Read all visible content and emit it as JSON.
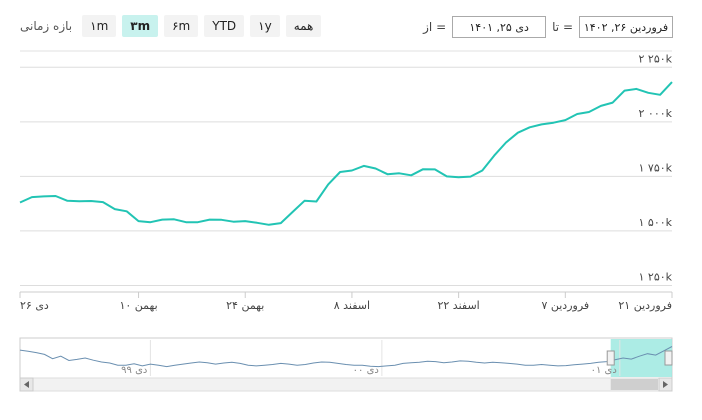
{
  "range_selector": {
    "label": "بازه زمانی",
    "buttons": [
      {
        "label": "۱m",
        "active": false
      },
      {
        "label": "۳m",
        "active": true
      },
      {
        "label": "۶m",
        "active": false
      },
      {
        "label": "YTD",
        "active": false
      },
      {
        "label": "۱y",
        "active": false
      },
      {
        "label": "همه",
        "active": false
      }
    ]
  },
  "date_range": {
    "from_label": "از =",
    "from_value": "دی ۲۵, ۱۴۰۱",
    "to_label": "تا =",
    "to_value": "فروردین ۲۶, ۱۴۰۲"
  },
  "colors": {
    "line": "#22c4b4",
    "navigator_line": "#6a8fb0",
    "navigator_mask": "#9ee9e1",
    "grid": "#dddddd"
  },
  "chart_data": {
    "type": "line",
    "y_ticks": [
      {
        "value": 1250,
        "label": "۱ ۲۵۰k"
      },
      {
        "value": 1500,
        "label": "۱ ۵۰۰k"
      },
      {
        "value": 1750,
        "label": "۱ ۷۵۰k"
      },
      {
        "value": 2000,
        "label": "۲ ۰۰۰k"
      },
      {
        "value": 2250,
        "label": "۲ ۲۵۰k"
      }
    ],
    "ylim": [
      1220,
      2320
    ],
    "x_ticks": [
      "دی ۲۶",
      "بهمن ۱۰",
      "بهمن ۲۴",
      "اسفند ۸",
      "اسفند ۲۲",
      "فروردین ۷",
      "فروردین ۲۱"
    ],
    "series": [
      {
        "values": [
          1630,
          1655,
          1658,
          1660,
          1638,
          1636,
          1637,
          1632,
          1600,
          1590,
          1545,
          1540,
          1552,
          1553,
          1540,
          1540,
          1552,
          1551,
          1542,
          1545,
          1537,
          1528,
          1536,
          1587,
          1638,
          1635,
          1713,
          1770,
          1777,
          1798,
          1786,
          1760,
          1764,
          1755,
          1783,
          1782,
          1750,
          1746,
          1749,
          1777,
          1845,
          1905,
          1950,
          1975,
          1988,
          1996,
          2008,
          2036,
          2045,
          2073,
          2088,
          2143,
          2151,
          2133,
          2124,
          2182
        ]
      }
    ]
  },
  "navigator": {
    "labels": [
      "دی ۹۹",
      "دی ۰۰",
      "دی ۰۱"
    ],
    "series": [
      0.72,
      0.69,
      0.65,
      0.6,
      0.48,
      0.55,
      0.43,
      0.46,
      0.5,
      0.44,
      0.39,
      0.36,
      0.3,
      0.3,
      0.34,
      0.28,
      0.33,
      0.3,
      0.26,
      0.3,
      0.33,
      0.36,
      0.39,
      0.37,
      0.33,
      0.36,
      0.38,
      0.35,
      0.3,
      0.28,
      0.3,
      0.32,
      0.35,
      0.33,
      0.3,
      0.32,
      0.36,
      0.39,
      0.38,
      0.35,
      0.32,
      0.3,
      0.3,
      0.27,
      0.26,
      0.28,
      0.3,
      0.35,
      0.37,
      0.38,
      0.41,
      0.4,
      0.37,
      0.39,
      0.42,
      0.41,
      0.38,
      0.36,
      0.38,
      0.37,
      0.35,
      0.33,
      0.3,
      0.3,
      0.32,
      0.3,
      0.28,
      0.29,
      0.31,
      0.33,
      0.35,
      0.38,
      0.4,
      0.45,
      0.5,
      0.47,
      0.55,
      0.62,
      0.58,
      0.7,
      0.82
    ],
    "selected_fraction": [
      0.906,
      1.0
    ]
  }
}
